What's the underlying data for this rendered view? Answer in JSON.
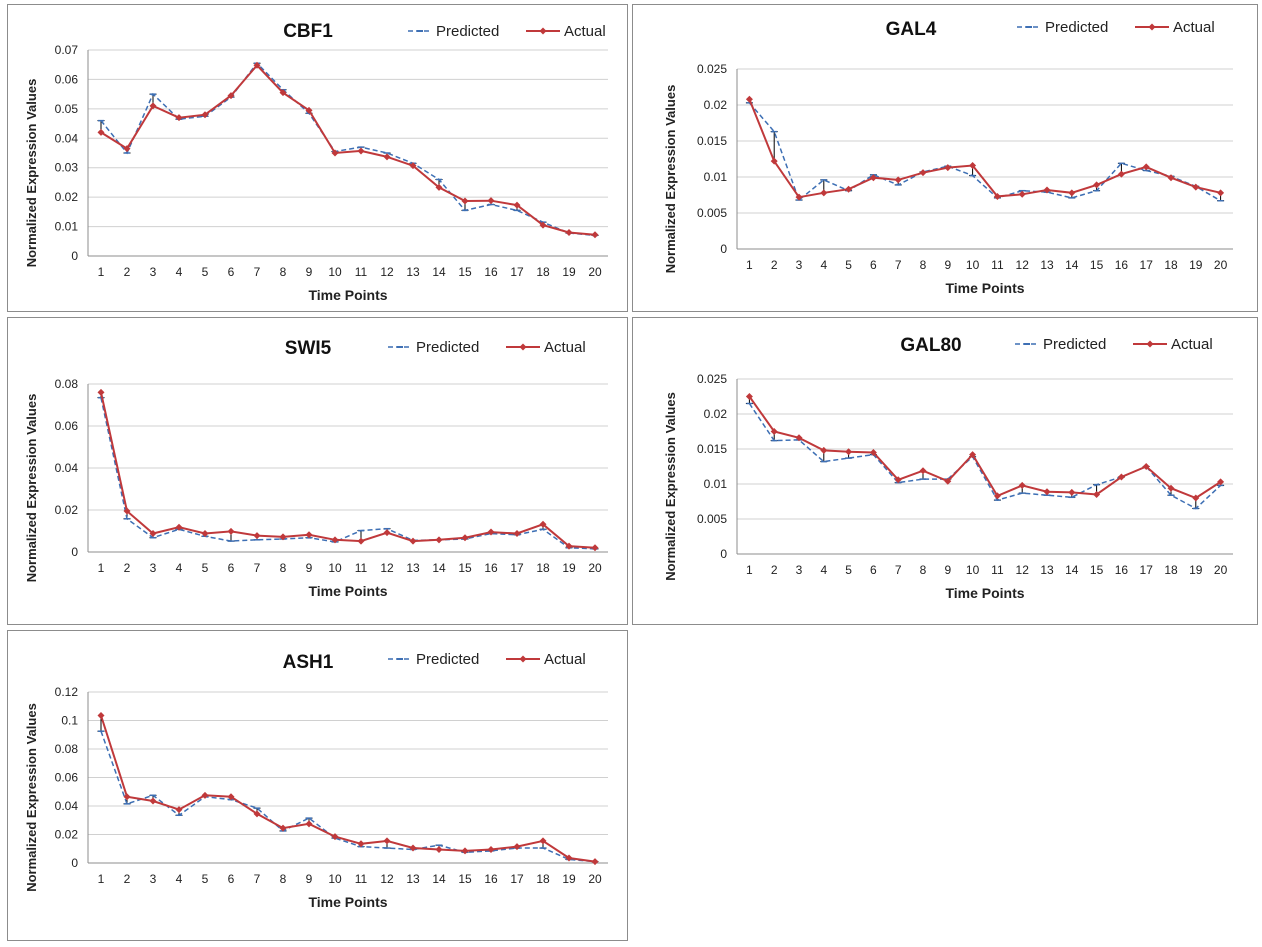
{
  "shared": {
    "ylabel": "Normalized Expression Values",
    "xlabel": "Time Points",
    "legend": {
      "predicted": "Predicted",
      "actual": "Actual"
    },
    "colors": {
      "predicted": "#3d6fb4",
      "actual": "#c0393b",
      "grid": "#d0d0d0",
      "axis": "#8c8c8c",
      "error_bar": "#000000"
    }
  },
  "chart_data": [
    {
      "type": "line",
      "title": "CBF1",
      "xlabel": "Time Points",
      "ylabel": "Normalized Expression Values",
      "x": [
        1,
        2,
        3,
        4,
        5,
        6,
        7,
        8,
        9,
        10,
        11,
        12,
        13,
        14,
        15,
        16,
        17,
        18,
        19,
        20
      ],
      "ylim": [
        0,
        0.07
      ],
      "yticks": [
        "0",
        "0.01",
        "0.02",
        "0.03",
        "0.04",
        "0.05",
        "0.06",
        "0.07"
      ],
      "legend_position": "top-right",
      "grid": true,
      "series": [
        {
          "name": "Predicted",
          "values": [
            0.046,
            0.035,
            0.055,
            0.0465,
            0.0475,
            0.054,
            0.0655,
            0.0565,
            0.0485,
            0.0355,
            0.037,
            0.035,
            0.0315,
            0.026,
            0.0155,
            0.0175,
            0.0155,
            0.0115,
            0.0078,
            0.007
          ]
        },
        {
          "name": "Actual",
          "values": [
            0.042,
            0.0365,
            0.051,
            0.047,
            0.048,
            0.0545,
            0.0648,
            0.0555,
            0.0495,
            0.035,
            0.0357,
            0.0337,
            0.0307,
            0.0233,
            0.0187,
            0.0188,
            0.0173,
            0.0105,
            0.008,
            0.0072
          ]
        }
      ]
    },
    {
      "type": "line",
      "title": "GAL4",
      "xlabel": "Time Points",
      "ylabel": "Normalized Expression Values",
      "x": [
        1,
        2,
        3,
        4,
        5,
        6,
        7,
        8,
        9,
        10,
        11,
        12,
        13,
        14,
        15,
        16,
        17,
        18,
        19,
        20
      ],
      "ylim": [
        0,
        0.025
      ],
      "yticks": [
        "0",
        "0.005",
        "0.01",
        "0.015",
        "0.02",
        "0.025"
      ],
      "legend_position": "top-right",
      "grid": true,
      "series": [
        {
          "name": "Predicted",
          "values": [
            0.0203,
            0.0163,
            0.0068,
            0.0096,
            0.0081,
            0.0103,
            0.0089,
            0.0107,
            0.0115,
            0.0102,
            0.0071,
            0.0081,
            0.0079,
            0.0071,
            0.0081,
            0.0119,
            0.0109,
            0.0101,
            0.0087,
            0.0067
          ]
        },
        {
          "name": "Actual",
          "values": [
            0.0208,
            0.0122,
            0.0072,
            0.0078,
            0.0083,
            0.0099,
            0.0096,
            0.0106,
            0.0113,
            0.0116,
            0.0073,
            0.0076,
            0.0082,
            0.0078,
            0.0089,
            0.0104,
            0.0114,
            0.0099,
            0.0086,
            0.0078
          ]
        }
      ]
    },
    {
      "type": "line",
      "title": "SWI5",
      "xlabel": "Time Points",
      "ylabel": "Normalized Expression Values",
      "x": [
        1,
        2,
        3,
        4,
        5,
        6,
        7,
        8,
        9,
        10,
        11,
        12,
        13,
        14,
        15,
        16,
        17,
        18,
        19,
        20
      ],
      "ylim": [
        0,
        0.08
      ],
      "yticks": [
        "0",
        "0.02",
        "0.04",
        "0.06",
        "0.08"
      ],
      "legend_position": "top-right",
      "grid": true,
      "series": [
        {
          "name": "Predicted",
          "values": [
            0.0735,
            0.0158,
            0.0068,
            0.0108,
            0.0075,
            0.0052,
            0.0058,
            0.0062,
            0.0068,
            0.0048,
            0.0102,
            0.0111,
            0.0055,
            0.0058,
            0.0062,
            0.0088,
            0.0082,
            0.0108,
            0.002,
            0.0015
          ]
        },
        {
          "name": "Actual",
          "values": [
            0.076,
            0.0195,
            0.0088,
            0.0118,
            0.0088,
            0.0098,
            0.0078,
            0.0072,
            0.0082,
            0.0058,
            0.0052,
            0.0092,
            0.0052,
            0.0058,
            0.0068,
            0.0095,
            0.0088,
            0.0132,
            0.0028,
            0.002
          ]
        }
      ]
    },
    {
      "type": "line",
      "title": "GAL80",
      "xlabel": "Time Points",
      "ylabel": "Normalized Expression Values",
      "x": [
        1,
        2,
        3,
        4,
        5,
        6,
        7,
        8,
        9,
        10,
        11,
        12,
        13,
        14,
        15,
        16,
        17,
        18,
        19,
        20
      ],
      "ylim": [
        0,
        0.025
      ],
      "yticks": [
        "0",
        "0.005",
        "0.01",
        "0.015",
        "0.02",
        "0.025"
      ],
      "legend_position": "top-right",
      "grid": true,
      "series": [
        {
          "name": "Predicted",
          "values": [
            0.0215,
            0.0162,
            0.0163,
            0.0132,
            0.0137,
            0.0142,
            0.0102,
            0.0107,
            0.0107,
            0.0139,
            0.0077,
            0.0087,
            0.0084,
            0.0081,
            0.0099,
            0.011,
            0.0125,
            0.0084,
            0.0065,
            0.0098
          ]
        },
        {
          "name": "Actual",
          "values": [
            0.0225,
            0.0175,
            0.0166,
            0.0148,
            0.0146,
            0.0145,
            0.0106,
            0.0119,
            0.0104,
            0.0142,
            0.0083,
            0.0098,
            0.0089,
            0.0088,
            0.0085,
            0.011,
            0.0125,
            0.0094,
            0.008,
            0.0103
          ]
        }
      ]
    },
    {
      "type": "line",
      "title": "ASH1",
      "xlabel": "Time Points",
      "ylabel": "Normalized Expression Values",
      "x": [
        1,
        2,
        3,
        4,
        5,
        6,
        7,
        8,
        9,
        10,
        11,
        12,
        13,
        14,
        15,
        16,
        17,
        18,
        19,
        20
      ],
      "ylim": [
        0,
        0.12
      ],
      "yticks": [
        "0",
        "0.02",
        "0.04",
        "0.06",
        "0.08",
        "0.1",
        "0.12"
      ],
      "legend_position": "top-right",
      "grid": true,
      "series": [
        {
          "name": "Predicted",
          "values": [
            0.0925,
            0.0415,
            0.0475,
            0.0335,
            0.0465,
            0.0445,
            0.0385,
            0.0225,
            0.0315,
            0.0175,
            0.0115,
            0.0105,
            0.0095,
            0.0125,
            0.0075,
            0.0085,
            0.0105,
            0.0105,
            0.0025,
            0.001
          ]
        },
        {
          "name": "Actual",
          "values": [
            0.1035,
            0.0465,
            0.0435,
            0.0375,
            0.0475,
            0.0465,
            0.0345,
            0.0245,
            0.0275,
            0.0185,
            0.0135,
            0.0155,
            0.0105,
            0.0095,
            0.0085,
            0.0095,
            0.0115,
            0.0155,
            0.0035,
            0.001
          ]
        }
      ]
    }
  ]
}
